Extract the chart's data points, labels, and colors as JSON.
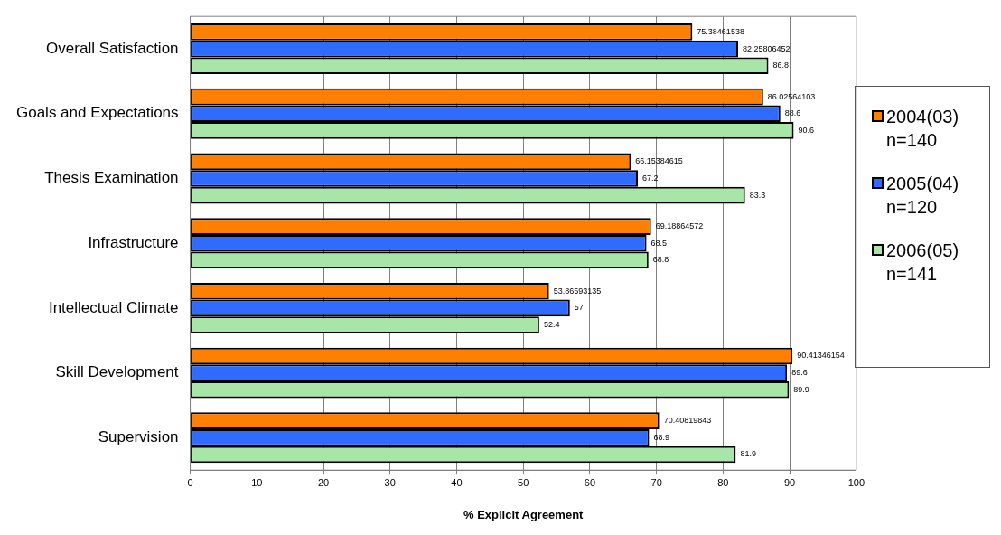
{
  "chart_data": {
    "type": "bar",
    "orientation": "horizontal",
    "xlabel": "% Explicit Agreement",
    "categories": [
      "Overall Satisfaction",
      "Goals and Expectations",
      "Thesis Examination",
      "Infrastructure",
      "Intellectual Climate",
      "Skill Development",
      "Supervision"
    ],
    "series": [
      {
        "name": "2004(03) n=140",
        "color": "#ff7f00",
        "values": [
          75.38461538,
          86.02564103,
          66.15384615,
          69.18864572,
          53.86593135,
          90.41346154,
          70.40819843
        ]
      },
      {
        "name": "2005(04) n=120",
        "color": "#2f6bff",
        "values": [
          82.25806452,
          88.6,
          67.2,
          68.5,
          57,
          89.6,
          68.9
        ]
      },
      {
        "name": "2006(05) n=141",
        "color": "#a8e6a8",
        "values": [
          86.8,
          90.6,
          83.3,
          68.8,
          52.4,
          89.9,
          81.9
        ]
      }
    ],
    "xlim": [
      0,
      100
    ],
    "xticks": [
      0,
      10,
      20,
      30,
      40,
      50,
      60,
      70,
      80,
      90,
      100
    ],
    "grid": "x",
    "legend": "right",
    "data_labels": true
  }
}
